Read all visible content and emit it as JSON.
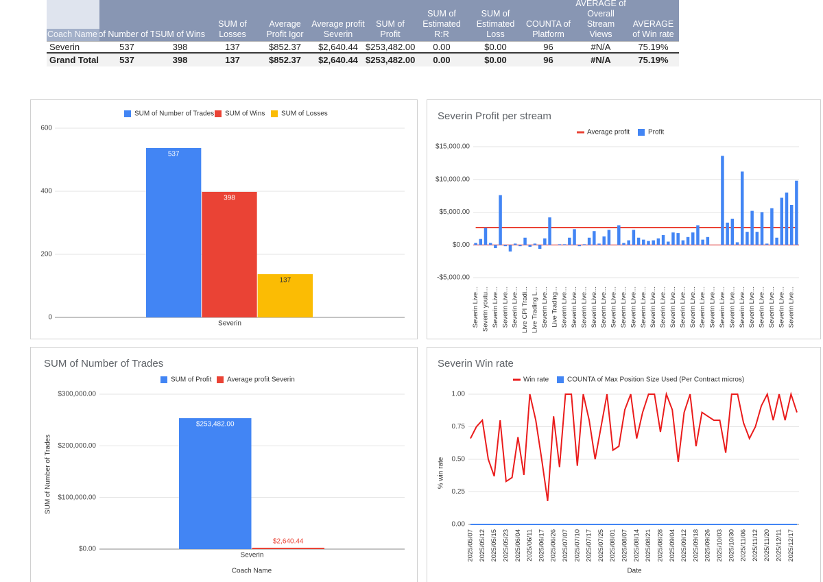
{
  "table": {
    "columns": [
      "Coach Name",
      "of Number of T",
      "SUM of Wins",
      "SUM of Losses",
      "Average Profit Igor",
      "Average profit Severin",
      "SUM of Profit",
      "SUM of Estimated R:R",
      "SUM of Estimated Loss",
      "COUNTA of Platform",
      "AVERAGE of Overall Stream Views",
      "AVERAGE of Win rate"
    ],
    "rows": [
      [
        "Severin",
        "537",
        "398",
        "137",
        "$852.37",
        "$2,640.44",
        "$253,482.00",
        "0.00",
        "$0.00",
        "96",
        "#N/A",
        "75.19%"
      ],
      [
        "Grand Total",
        "537",
        "398",
        "137",
        "$852.37",
        "$2,640.44",
        "$253,482.00",
        "0.00",
        "$0.00",
        "96",
        "#N/A",
        "75.19%"
      ]
    ]
  },
  "chart_data": [
    {
      "type": "bar",
      "categories": [
        "Severin"
      ],
      "series": [
        {
          "name": "SUM of Number of Trades",
          "color": "#4285f4",
          "values": [
            537
          ]
        },
        {
          "name": "SUM of Wins",
          "color": "#ea4335",
          "values": [
            398
          ]
        },
        {
          "name": "SUM of Losses",
          "color": "#fbbc04",
          "values": [
            137
          ]
        }
      ],
      "ylim": [
        0,
        600
      ],
      "yticks": [
        0,
        200,
        400,
        600
      ],
      "grid": true,
      "legend": "top"
    },
    {
      "type": "combo",
      "title": "Severin Profit per stream",
      "categories": [
        "Severin Live...",
        null,
        "Severin youtu...",
        null,
        "Severin Live...",
        null,
        "Severin Live...",
        null,
        "Severin Live...",
        null,
        "Live CPI Tradi...",
        null,
        "Live Trading L...",
        null,
        "Severin Live...",
        null,
        "Live Trading...",
        null,
        "Severin Live...",
        null,
        "Severin Live...",
        null,
        "Severin Live...",
        null,
        "Severin Live...",
        null,
        "Severin Live...",
        null,
        "Severin Live...",
        null,
        "Severin Live...",
        null,
        "Severin Live...",
        null,
        "Severin Live...",
        null,
        "Severin Live...",
        null,
        "Severin Live...",
        null,
        "Severin Live...",
        null,
        "Severin Live...",
        null,
        "Severin Live...",
        null,
        "Severin Live...",
        null,
        "Severin Live...",
        null,
        "Severin Live...",
        null,
        "Severin Live...",
        null,
        "Severin Live...",
        null,
        "Severin Live...",
        null,
        "Severin Live...",
        null,
        "Severin Live...",
        null,
        "Severin Live...",
        null,
        "Severin Live...",
        null
      ],
      "series": [
        {
          "name": "Average profit",
          "type": "line",
          "color": "#ea4335",
          "values": [
            2640.44,
            2640.44,
            2640.44,
            2640.44,
            2640.44,
            2640.44,
            2640.44,
            2640.44,
            2640.44,
            2640.44,
            2640.44,
            2640.44,
            2640.44,
            2640.44,
            2640.44,
            2640.44,
            2640.44,
            2640.44,
            2640.44,
            2640.44,
            2640.44,
            2640.44,
            2640.44,
            2640.44,
            2640.44,
            2640.44,
            2640.44,
            2640.44,
            2640.44,
            2640.44,
            2640.44,
            2640.44,
            2640.44,
            2640.44,
            2640.44,
            2640.44,
            2640.44,
            2640.44,
            2640.44,
            2640.44,
            2640.44,
            2640.44,
            2640.44,
            2640.44,
            2640.44,
            2640.44,
            2640.44,
            2640.44,
            2640.44,
            2640.44,
            2640.44,
            2640.44,
            2640.44,
            2640.44,
            2640.44,
            2640.44,
            2640.44,
            2640.44,
            2640.44,
            2640.44,
            2640.44,
            2640.44,
            2640.44,
            2640.44,
            2640.44,
            2640.44
          ]
        },
        {
          "name": "Profit",
          "type": "bar",
          "color": "#4285f4",
          "values": [
            300,
            900,
            2600,
            300,
            -500,
            7600,
            -200,
            -1000,
            200,
            -200,
            1100,
            -300,
            200,
            -600,
            1000,
            4200,
            0,
            100,
            100,
            1100,
            2400,
            -200,
            100,
            1100,
            2100,
            200,
            1300,
            2300,
            0,
            3000,
            300,
            700,
            2300,
            1100,
            800,
            600,
            700,
            1000,
            1500,
            500,
            1900,
            1800,
            700,
            1200,
            1900,
            3000,
            800,
            1200,
            0,
            0,
            13600,
            3400,
            4000,
            400,
            11200,
            2000,
            5200,
            2000,
            5000,
            200,
            5600,
            1100,
            7200,
            8000,
            6100,
            9800
          ]
        }
      ],
      "ylim": [
        -5000,
        15000
      ],
      "yticks": [
        {
          "value": -5000,
          "label": "-$5,000.00"
        },
        {
          "value": 0,
          "label": "$0.00"
        },
        {
          "value": 5000,
          "label": "$5,000.00"
        },
        {
          "value": 10000,
          "label": "$10,000.00"
        },
        {
          "value": 15000,
          "label": "$15,000.00"
        }
      ],
      "grid": true,
      "legend": "top"
    },
    {
      "type": "bar",
      "title": "SUM of Number of Trades",
      "x_label": "Coach Name",
      "y_label": "SUM of Number of Trades",
      "categories": [
        "Severin"
      ],
      "series": [
        {
          "name": "SUM of Profit",
          "color": "#4285f4",
          "values": [
            253482
          ],
          "value_labels": [
            "$253,482.00"
          ]
        },
        {
          "name": "Average profit Severin",
          "color": "#ea4335",
          "values": [
            2640.44
          ],
          "value_labels": [
            "$2,640.44"
          ]
        }
      ],
      "ylim": [
        0,
        300000
      ],
      "yticks": [
        {
          "value": 0,
          "label": "$0.00"
        },
        {
          "value": 100000,
          "label": "$100,000.00"
        },
        {
          "value": 200000,
          "label": "$200,000.00"
        },
        {
          "value": 300000,
          "label": "$300,000.00"
        }
      ],
      "grid": true,
      "legend": "top"
    },
    {
      "type": "line",
      "title": "Severin Win rate",
      "x_label": "Date",
      "y_label": "% win rate",
      "categories": [
        "2025/05/07",
        null,
        "2025/05/12",
        null,
        "2025/05/15",
        null,
        "2025/05/23",
        null,
        "2025/06/04",
        null,
        "2025/06/11",
        null,
        "2025/06/17",
        null,
        "2025/06/26",
        null,
        "2025/07/07",
        null,
        "2025/07/10",
        null,
        "2025/07/17",
        null,
        "2025/07/25",
        null,
        "2025/08/01",
        null,
        "2025/08/07",
        null,
        "2025/08/14",
        null,
        "2025/08/21",
        null,
        "2025/08/28",
        null,
        "2025/09/04",
        null,
        "2025/09/12",
        null,
        "2025/09/18",
        null,
        "2025/09/26",
        null,
        "2025/10/03",
        null,
        "2025/10/30",
        null,
        "2025/11/06",
        null,
        "2025/11/12",
        null,
        "2025/11/20",
        null,
        "2025/12/11",
        null,
        "2025/12/17",
        null
      ],
      "series": [
        {
          "name": "Win rate",
          "color": "#ea1c1c",
          "values": [
            0.66,
            0.75,
            0.8,
            0.5,
            0.37,
            0.8,
            0.33,
            0.36,
            0.67,
            0.38,
            1,
            0.8,
            0.5,
            0.18,
            0.83,
            0.44,
            1,
            1,
            0.45,
            1,
            0.8,
            0.5,
            0.75,
            1,
            0.57,
            0.6,
            0.88,
            1,
            0.66,
            0.86,
            1,
            1,
            0.71,
            1,
            0.88,
            0.48,
            0.86,
            1,
            0.6,
            0.86,
            0.83,
            0.8,
            0.8,
            0.55,
            1,
            1,
            0.78,
            0.66,
            0.75,
            0.91,
            1,
            0.8,
            1,
            0.8,
            1,
            0.86
          ]
        },
        {
          "name": "COUNTA of Max Position Size Used (Per Contract micros)",
          "color": "#4285f4",
          "values": [
            0,
            0,
            0,
            0,
            0,
            0,
            0,
            0,
            0,
            0,
            0,
            0,
            0,
            0,
            0,
            0,
            0,
            0,
            0,
            0,
            0,
            0,
            0,
            0,
            0,
            0,
            0,
            0,
            0,
            0,
            0,
            0,
            0,
            0,
            0,
            0,
            0,
            0,
            0,
            0,
            0,
            0,
            0,
            0,
            0,
            0,
            0,
            0,
            0,
            0,
            0,
            0,
            0,
            0,
            0,
            0
          ]
        }
      ],
      "ylim": [
        0,
        1
      ],
      "yticks": [
        {
          "value": 0,
          "label": "0.00"
        },
        {
          "value": 0.25,
          "label": "0.25"
        },
        {
          "value": 0.5,
          "label": "0.50"
        },
        {
          "value": 0.75,
          "label": "0.75"
        },
        {
          "value": 1,
          "label": "1.00"
        }
      ],
      "grid": true,
      "legend": "top"
    }
  ]
}
